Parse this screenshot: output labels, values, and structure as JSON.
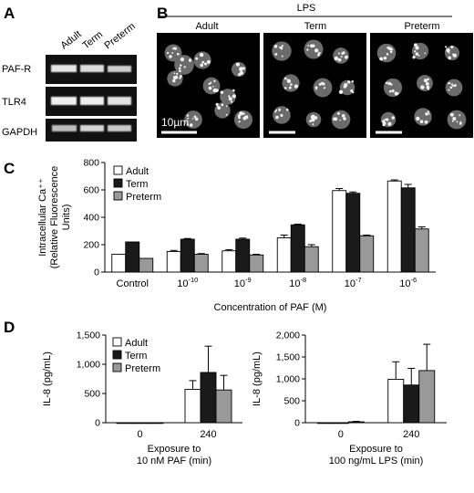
{
  "panels": {
    "A": {
      "letter": "A",
      "lanes": [
        "Adult",
        "Term",
        "Preterm"
      ],
      "rows": [
        "PAF-R",
        "TLR4",
        "GAPDH"
      ]
    },
    "B": {
      "letter": "B",
      "header": "LPS",
      "columns": [
        "Adult",
        "Term",
        "Preterm"
      ],
      "scale_label": "10µm"
    },
    "C": {
      "letter": "C"
    },
    "D": {
      "letter": "D"
    }
  },
  "chart_data": [
    {
      "type": "bar",
      "panel": "C",
      "ylabel": [
        "Intracellular Ca⁺⁺",
        "(Relative Fluorescence",
        "Units)"
      ],
      "xlabel": "Concentration of PAF (M)",
      "ylim": [
        0,
        800
      ],
      "yticks": [
        0,
        200,
        400,
        600,
        800
      ],
      "categories": [
        "Control",
        "10-10",
        "10-9",
        "10-8",
        "10-7",
        "10-6"
      ],
      "category_labels": [
        {
          "base": "Control",
          "exp": ""
        },
        {
          "base": "10",
          "exp": "-10"
        },
        {
          "base": "10",
          "exp": "-9"
        },
        {
          "base": "10",
          "exp": "-8"
        },
        {
          "base": "10",
          "exp": "-7"
        },
        {
          "base": "10",
          "exp": "-6"
        }
      ],
      "legend_position": "top-left",
      "series": [
        {
          "name": "Adult",
          "color": "#ffffff",
          "values": [
            130,
            150,
            155,
            250,
            595,
            665
          ],
          "errors": [
            0,
            8,
            8,
            20,
            15,
            8
          ]
        },
        {
          "name": "Term",
          "color": "#1a1a1a",
          "values": [
            220,
            240,
            240,
            345,
            575,
            615
          ],
          "errors": [
            0,
            5,
            8,
            5,
            10,
            25
          ]
        },
        {
          "name": "Preterm",
          "color": "#999999",
          "values": [
            100,
            130,
            125,
            185,
            265,
            315
          ],
          "errors": [
            0,
            5,
            5,
            15,
            5,
            15
          ]
        }
      ]
    },
    {
      "type": "bar",
      "panel": "D-left",
      "ylabel": "IL-8 (pg/mL)",
      "xlabel": [
        "Exposure to",
        "10 nM PAF (min)"
      ],
      "ylim": [
        0,
        1500
      ],
      "yticks": [
        0,
        500,
        1000,
        1500
      ],
      "ytick_labels": [
        "0",
        "500",
        "1,000",
        "1,500"
      ],
      "categories": [
        "0",
        "240"
      ],
      "legend_position": "top-left",
      "series": [
        {
          "name": "Adult",
          "color": "#ffffff",
          "values": [
            0,
            570
          ],
          "errors": [
            0,
            150
          ]
        },
        {
          "name": "Term",
          "color": "#1a1a1a",
          "values": [
            0,
            860
          ],
          "errors": [
            0,
            450
          ]
        },
        {
          "name": "Preterm",
          "color": "#999999",
          "values": [
            0,
            560
          ],
          "errors": [
            0,
            250
          ]
        }
      ]
    },
    {
      "type": "bar",
      "panel": "D-right",
      "ylabel": "IL-8 (pg/mL)",
      "xlabel": [
        "Exposure to",
        "100 ng/mL LPS (min)"
      ],
      "ylim": [
        0,
        2000
      ],
      "yticks": [
        0,
        500,
        1000,
        1500,
        2000
      ],
      "ytick_labels": [
        "0",
        "500",
        "1,000",
        "1,500",
        "2,000"
      ],
      "categories": [
        "0",
        "240"
      ],
      "series": [
        {
          "name": "Adult",
          "color": "#ffffff",
          "values": [
            0,
            990
          ],
          "errors": [
            0,
            400
          ]
        },
        {
          "name": "Term",
          "color": "#1a1a1a",
          "values": [
            0,
            860
          ],
          "errors": [
            0,
            380
          ]
        },
        {
          "name": "Preterm",
          "color": "#999999",
          "values": [
            20,
            1190
          ],
          "errors": [
            10,
            600
          ]
        }
      ]
    }
  ]
}
